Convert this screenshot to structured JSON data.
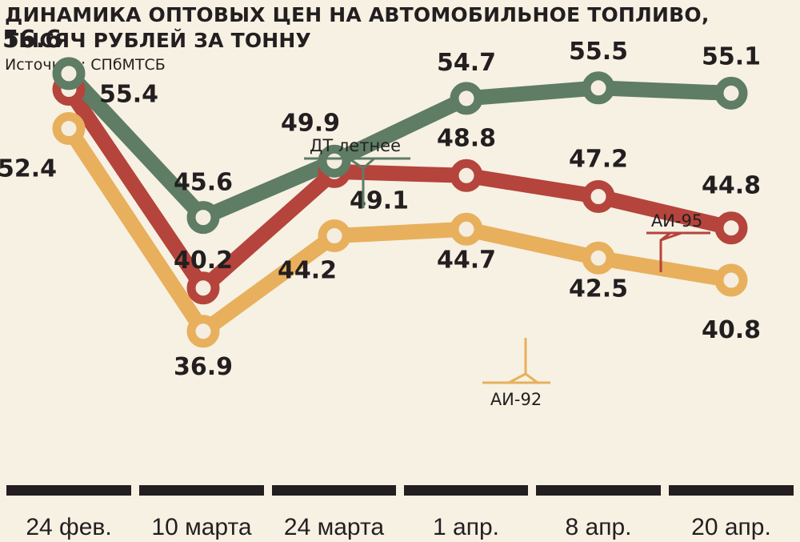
{
  "title_line1": "ДИНАМИКА ОПТОВЫХ ЦЕН НА АВТОМОБИЛЬНОЕ ТОПЛИВО,",
  "title_line2": "ТЫСЯЧ РУБЛЕЙ ЗА ТОННУ",
  "source": "Источник: СПбМТСБ",
  "colors": {
    "background": "#f6f1e3",
    "dt": "#5f7c65",
    "ai95": "#b5443c",
    "ai92": "#e8b05c",
    "text": "#231f20"
  },
  "chart_data": {
    "type": "line",
    "categories": [
      "24 фев.",
      "10 марта",
      "24 марта",
      "1 апр.",
      "8 апр.",
      "20 апр."
    ],
    "ylim": [
      35,
      58
    ],
    "grid": false,
    "series": [
      {
        "name": "ДТ летнее",
        "color": "#5f7c65",
        "values": [
          56.6,
          45.6,
          49.9,
          54.7,
          55.5,
          55.1
        ]
      },
      {
        "name": "АИ-95",
        "color": "#b5443c",
        "values": [
          55.4,
          40.2,
          49.1,
          48.8,
          47.2,
          44.8
        ]
      },
      {
        "name": "АИ-92",
        "color": "#e8b05c",
        "values": [
          52.4,
          36.9,
          44.2,
          44.7,
          42.5,
          40.8
        ]
      }
    ]
  }
}
